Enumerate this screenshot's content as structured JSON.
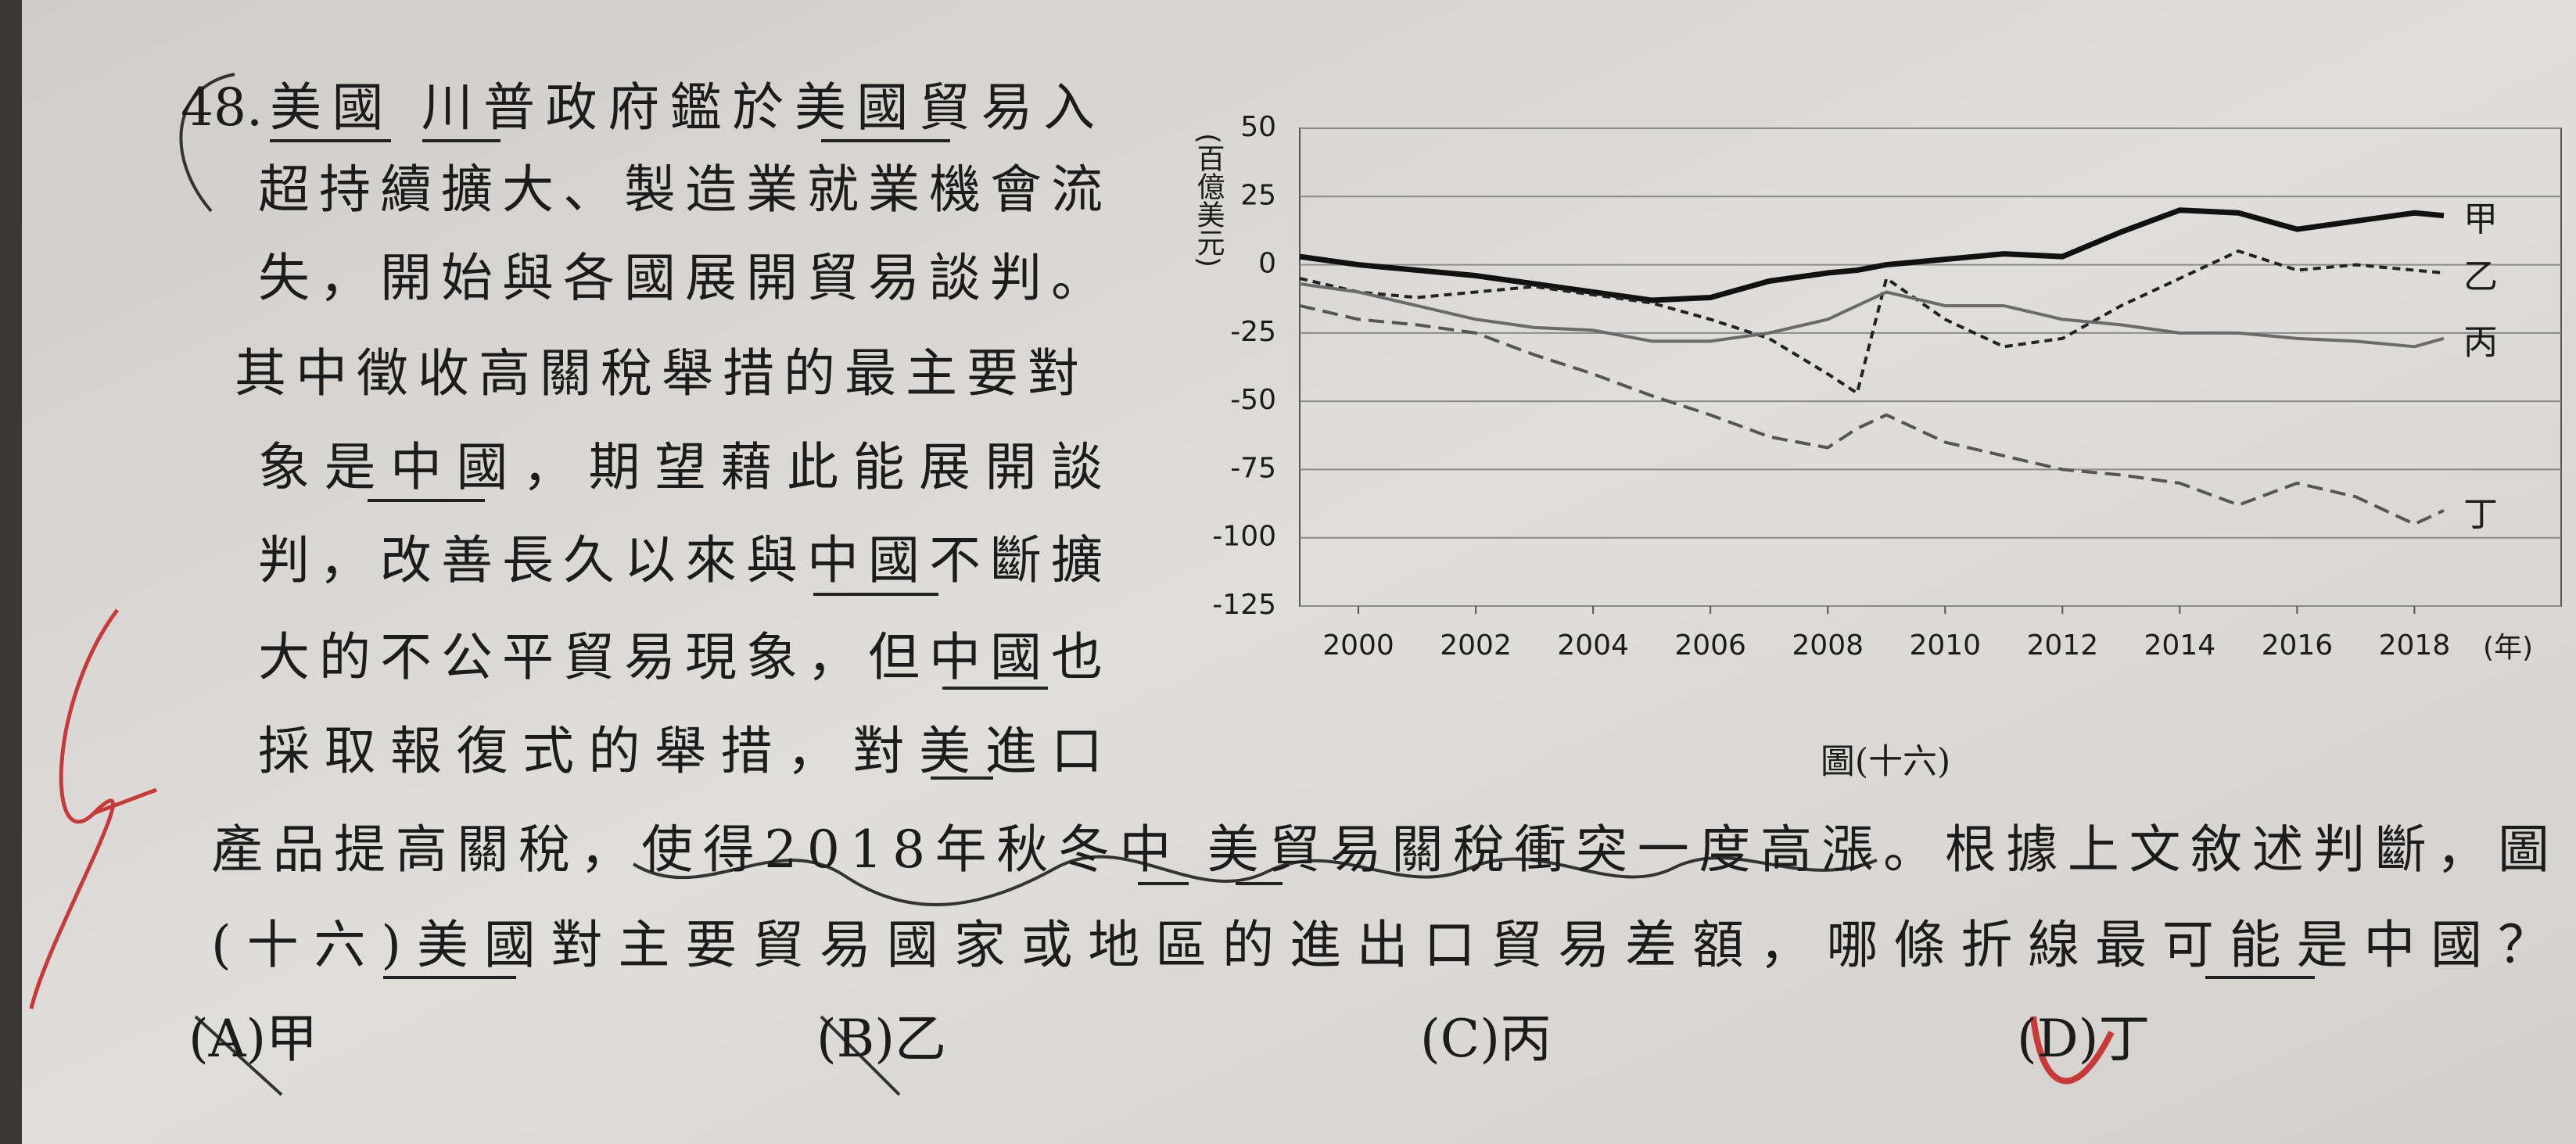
{
  "question": {
    "number": "48.",
    "lines": [
      "美國 川普政府鑑於美國貿易入",
      "超持續擴大、製造業就業機會流",
      "失，開始與各國展開貿易談判。",
      "其中徵收高關稅舉措的最主要對",
      "象是中國，期望藉此能展開談",
      "判，改善長久以來與中國不斷擴",
      "大的不公平貿易現象，但中國也",
      "採取報復式的舉措，對美進口",
      "產品提高關稅，使得2018年秋冬中 美貿易關稅衝突一度高漲。根據上文敘述判斷，圖",
      "(十六)美國對主要貿易國家或地區的進出口貿易差額，哪條折線最可能是中國？"
    ],
    "options": [
      "(A)甲",
      "(B)乙",
      "(C)丙",
      "(D)丁"
    ]
  },
  "chart_data": {
    "type": "line",
    "caption": "圖(十六)",
    "y_label": "(百億美元)",
    "x_unit": "(年)",
    "x": [
      1999,
      2000,
      2001,
      2002,
      2003,
      2004,
      2005,
      2006,
      2007,
      2008,
      2008.5,
      2009,
      2010,
      2011,
      2012,
      2013,
      2014,
      2015,
      2016,
      2017,
      2018,
      2018.5
    ],
    "series": [
      {
        "name": "甲",
        "color": "#111111",
        "style": "bold",
        "values": [
          3,
          0,
          -2,
          -4,
          -7,
          -10,
          -13,
          -12,
          -6,
          -3,
          -2,
          0,
          2,
          4,
          3,
          12,
          20,
          19,
          13,
          16,
          19,
          18
        ]
      },
      {
        "name": "乙",
        "color": "#222222",
        "style": "dotted",
        "values": [
          -5,
          -10,
          -12,
          -10,
          -8,
          -11,
          -14,
          -20,
          -27,
          -40,
          -47,
          -5,
          -20,
          -30,
          -27,
          -15,
          -5,
          5,
          -2,
          0,
          -2,
          -3
        ]
      },
      {
        "name": "丙",
        "color": "#6a6a6a",
        "style": "solid",
        "values": [
          -7,
          -10,
          -15,
          -20,
          -23,
          -24,
          -28,
          -28,
          -25,
          -20,
          -15,
          -10,
          -15,
          -15,
          -20,
          -22,
          -25,
          -25,
          -27,
          -28,
          -30,
          -27
        ]
      },
      {
        "name": "丁",
        "color": "#555555",
        "style": "dashed",
        "values": [
          -15,
          -20,
          -22,
          -25,
          -33,
          -40,
          -48,
          -55,
          -63,
          -67,
          -60,
          -55,
          -65,
          -70,
          -75,
          -77,
          -80,
          -88,
          -80,
          -85,
          -95,
          -90
        ]
      }
    ],
    "xlim": [
      1999,
      2020.5
    ],
    "xticks": [
      2000,
      2002,
      2004,
      2006,
      2008,
      2010,
      2012,
      2014,
      2016,
      2018
    ],
    "ylim": [
      -125,
      50
    ],
    "yticks": [
      -125,
      -100,
      -75,
      -50,
      -25,
      0,
      25,
      50
    ],
    "grid": true
  }
}
